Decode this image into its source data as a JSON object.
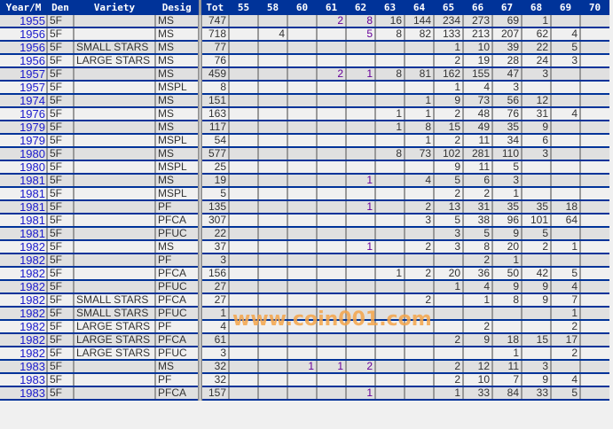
{
  "table": {
    "headers": [
      "Year/M",
      "Den",
      "Variety",
      "Desig",
      "Tot",
      "55",
      "58",
      "60",
      "61",
      "62",
      "63",
      "64",
      "65",
      "66",
      "67",
      "68",
      "69",
      "70"
    ],
    "rows": [
      [
        "1955",
        "5F",
        "",
        "MS",
        "747",
        "",
        "",
        "",
        "2",
        "8",
        "16",
        "144",
        "234",
        "273",
        "69",
        "1",
        "",
        ""
      ],
      [
        "1956",
        "5F",
        "",
        "MS",
        "718",
        "",
        "4",
        "",
        "",
        "5",
        "8",
        "82",
        "133",
        "213",
        "207",
        "62",
        "4",
        ""
      ],
      [
        "1956",
        "5F",
        "SMALL STARS",
        "MS",
        "77",
        "",
        "",
        "",
        "",
        "",
        "",
        "",
        "1",
        "10",
        "39",
        "22",
        "5",
        ""
      ],
      [
        "1956",
        "5F",
        "LARGE STARS",
        "MS",
        "76",
        "",
        "",
        "",
        "",
        "",
        "",
        "",
        "2",
        "19",
        "28",
        "24",
        "3",
        ""
      ],
      [
        "1957",
        "5F",
        "",
        "MS",
        "459",
        "",
        "",
        "",
        "2",
        "1",
        "8",
        "81",
        "162",
        "155",
        "47",
        "3",
        "",
        ""
      ],
      [
        "1957",
        "5F",
        "",
        "MSPL",
        "8",
        "",
        "",
        "",
        "",
        "",
        "",
        "",
        "1",
        "4",
        "3",
        "",
        "",
        ""
      ],
      [
        "1974",
        "5F",
        "",
        "MS",
        "151",
        "",
        "",
        "",
        "",
        "",
        "",
        "1",
        "9",
        "73",
        "56",
        "12",
        "",
        ""
      ],
      [
        "1976",
        "5F",
        "",
        "MS",
        "163",
        "",
        "",
        "",
        "",
        "",
        "1",
        "1",
        "2",
        "48",
        "76",
        "31",
        "4",
        ""
      ],
      [
        "1979",
        "5F",
        "",
        "MS",
        "117",
        "",
        "",
        "",
        "",
        "",
        "1",
        "8",
        "15",
        "49",
        "35",
        "9",
        "",
        ""
      ],
      [
        "1979",
        "5F",
        "",
        "MSPL",
        "54",
        "",
        "",
        "",
        "",
        "",
        "",
        "1",
        "2",
        "11",
        "34",
        "6",
        "",
        ""
      ],
      [
        "1980",
        "5F",
        "",
        "MS",
        "577",
        "",
        "",
        "",
        "",
        "",
        "8",
        "73",
        "102",
        "281",
        "110",
        "3",
        "",
        ""
      ],
      [
        "1980",
        "5F",
        "",
        "MSPL",
        "25",
        "",
        "",
        "",
        "",
        "",
        "",
        "",
        "9",
        "11",
        "5",
        "",
        "",
        ""
      ],
      [
        "1981",
        "5F",
        "",
        "MS",
        "19",
        "",
        "",
        "",
        "",
        "1",
        "",
        "4",
        "5",
        "6",
        "3",
        "",
        "",
        ""
      ],
      [
        "1981",
        "5F",
        "",
        "MSPL",
        "5",
        "",
        "",
        "",
        "",
        "",
        "",
        "",
        "2",
        "2",
        "1",
        "",
        "",
        ""
      ],
      [
        "1981",
        "5F",
        "",
        "PF",
        "135",
        "",
        "",
        "",
        "",
        "1",
        "",
        "2",
        "13",
        "31",
        "35",
        "35",
        "18",
        ""
      ],
      [
        "1981",
        "5F",
        "",
        "PFCA",
        "307",
        "",
        "",
        "",
        "",
        "",
        "",
        "3",
        "5",
        "38",
        "96",
        "101",
        "64",
        ""
      ],
      [
        "1981",
        "5F",
        "",
        "PFUC",
        "22",
        "",
        "",
        "",
        "",
        "",
        "",
        "",
        "3",
        "5",
        "9",
        "5",
        "",
        ""
      ],
      [
        "1982",
        "5F",
        "",
        "MS",
        "37",
        "",
        "",
        "",
        "",
        "1",
        "",
        "2",
        "3",
        "8",
        "20",
        "2",
        "1",
        ""
      ],
      [
        "1982",
        "5F",
        "",
        "PF",
        "3",
        "",
        "",
        "",
        "",
        "",
        "",
        "",
        "",
        "2",
        "1",
        "",
        "",
        ""
      ],
      [
        "1982",
        "5F",
        "",
        "PFCA",
        "156",
        "",
        "",
        "",
        "",
        "",
        "1",
        "2",
        "20",
        "36",
        "50",
        "42",
        "5",
        ""
      ],
      [
        "1982",
        "5F",
        "",
        "PFUC",
        "27",
        "",
        "",
        "",
        "",
        "",
        "",
        "",
        "1",
        "4",
        "9",
        "9",
        "4",
        ""
      ],
      [
        "1982",
        "5F",
        "SMALL STARS",
        "PFCA",
        "27",
        "",
        "",
        "",
        "",
        "",
        "",
        "2",
        "",
        "1",
        "8",
        "9",
        "7",
        ""
      ],
      [
        "1982",
        "5F",
        "SMALL STARS",
        "PFUC",
        "1",
        "",
        "",
        "",
        "",
        "",
        "",
        "",
        "",
        "",
        "",
        "",
        "1",
        ""
      ],
      [
        "1982",
        "5F",
        "LARGE STARS",
        "PF",
        "4",
        "",
        "",
        "",
        "",
        "",
        "",
        "",
        "",
        "2",
        "",
        "",
        "2",
        ""
      ],
      [
        "1982",
        "5F",
        "LARGE STARS",
        "PFCA",
        "61",
        "",
        "",
        "",
        "",
        "",
        "",
        "",
        "2",
        "9",
        "18",
        "15",
        "17",
        ""
      ],
      [
        "1982",
        "5F",
        "LARGE STARS",
        "PFUC",
        "3",
        "",
        "",
        "",
        "",
        "",
        "",
        "",
        "",
        "",
        "1",
        "",
        "2",
        ""
      ],
      [
        "1983",
        "5F",
        "",
        "MS",
        "32",
        "",
        "",
        "1",
        "1",
        "2",
        "",
        "",
        "2",
        "12",
        "11",
        "3",
        "",
        ""
      ],
      [
        "1983",
        "5F",
        "",
        "PF",
        "32",
        "",
        "",
        "",
        "",
        "",
        "",
        "",
        "2",
        "10",
        "7",
        "9",
        "4",
        ""
      ],
      [
        "1983",
        "5F",
        "",
        "PFCA",
        "157",
        "",
        "",
        "",
        "",
        "1",
        "",
        "",
        "1",
        "33",
        "84",
        "33",
        "5",
        ""
      ]
    ]
  },
  "watermark": "www.coin001.com",
  "colors": {
    "header_bg": "#003399",
    "row_separator": "#003399",
    "year_link": "#1a1acc",
    "watermark": "#f5a54a"
  }
}
